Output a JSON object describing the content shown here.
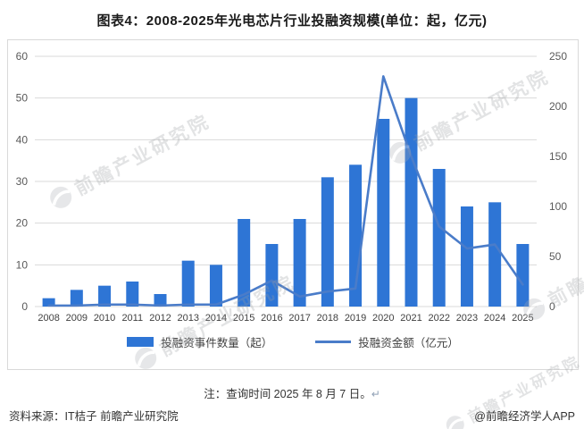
{
  "title": "图表4：2008-2025年光电芯片行业投融资规模(单位：起，亿元)",
  "chart_data": {
    "type": "bar+line",
    "categories": [
      "2008",
      "2009",
      "2010",
      "2011",
      "2012",
      "2013",
      "2014",
      "2015",
      "2016",
      "2017",
      "2018",
      "2019",
      "2020",
      "2021",
      "2022",
      "2023",
      "2024",
      "2025"
    ],
    "series": [
      {
        "name": "投融资事件数量（起）",
        "type": "bar",
        "axis": "left",
        "values": [
          2,
          4,
          5,
          6,
          3,
          11,
          10,
          21,
          15,
          21,
          31,
          34,
          45,
          50,
          33,
          24,
          25,
          15
        ]
      },
      {
        "name": "投融资金额（亿元）",
        "type": "line",
        "axis": "right",
        "values": [
          1,
          1,
          2,
          2,
          1,
          2,
          2,
          12,
          26,
          10,
          15,
          18,
          230,
          150,
          80,
          58,
          62,
          22
        ]
      }
    ],
    "left_axis": {
      "min": 0,
      "max": 60,
      "step": 10
    },
    "right_axis": {
      "min": 0,
      "max": 250,
      "step": 50
    },
    "grid": true,
    "legend_position": "bottom"
  },
  "colors": {
    "bar": "#2e75d5",
    "line": "#4a7cc9",
    "grid": "#d9d9d9",
    "axis_text": "#595959",
    "x_text": "#404040",
    "border": "#d9d9d9"
  },
  "note": {
    "text": "注：查询时间 2025 年 8 月 7 日。",
    "return_mark": "↵"
  },
  "source": {
    "label": "资料来源：IT桔子 前瞻产业研究院"
  },
  "credit": {
    "label": "@前瞻经济学人APP"
  },
  "watermark": {
    "text": "前瞻产业研究院"
  }
}
